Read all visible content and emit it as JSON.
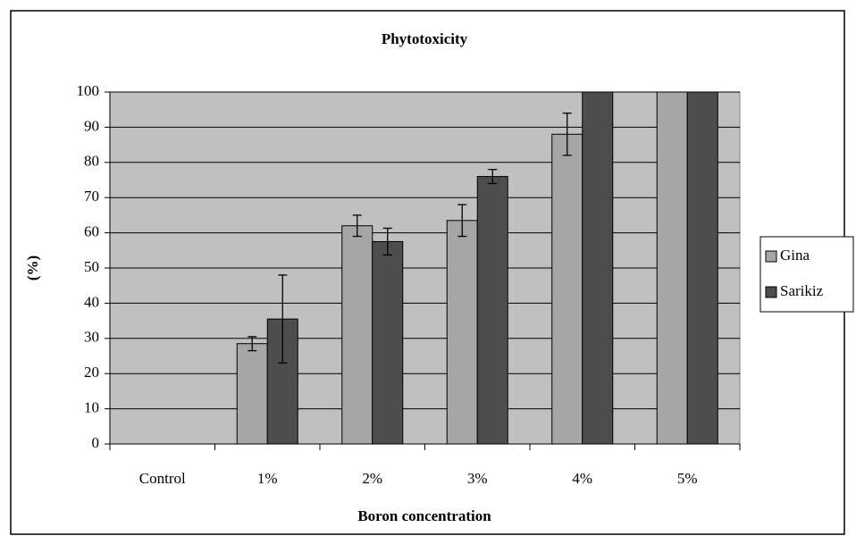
{
  "chart_data": {
    "type": "bar",
    "title": "Phytotoxicity",
    "x_label": "Boron concentration",
    "y_label": "(%)",
    "categories": [
      "Control",
      "1%",
      "2%",
      "3%",
      "4%",
      "5%"
    ],
    "series": [
      {
        "name": "Gina",
        "color": "#a6a6a6",
        "values": [
          0,
          28.5,
          62,
          63.5,
          88,
          100
        ],
        "errors": [
          null,
          2,
          3,
          4.5,
          6,
          null
        ]
      },
      {
        "name": "Sarikiz",
        "color": "#4d4d4d",
        "values": [
          0,
          35.5,
          57.5,
          76,
          100,
          100
        ],
        "errors": [
          null,
          12.5,
          3.8,
          2,
          null,
          null
        ]
      }
    ],
    "ylim": [
      0,
      100
    ],
    "yticks": [
      0,
      10,
      20,
      30,
      40,
      50,
      60,
      70,
      80,
      90,
      100
    ],
    "grid": true,
    "legend": "right"
  }
}
